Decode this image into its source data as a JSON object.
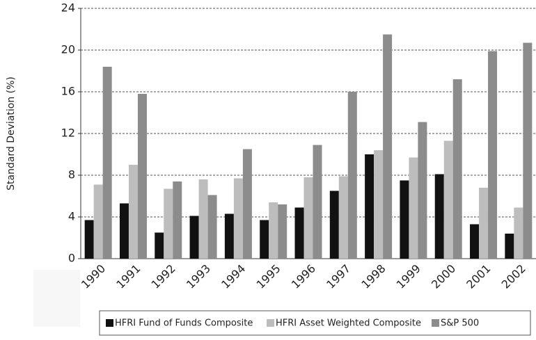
{
  "chart_data": {
    "type": "bar",
    "y_label": "Standard Deviation (%)",
    "categories": [
      "1990",
      "1991",
      "1992",
      "1993",
      "1994",
      "1995",
      "1996",
      "1997",
      "1998",
      "1999",
      "2000",
      "2001",
      "2002"
    ],
    "series": [
      {
        "name": "HFRI Fund of Funds Composite",
        "color": "#111111",
        "values": [
          3.7,
          5.3,
          2.5,
          4.1,
          4.3,
          3.7,
          4.9,
          6.5,
          10.0,
          7.5,
          8.1,
          3.3,
          2.4
        ]
      },
      {
        "name": "HFRI Asset Weighted Composite",
        "color": "#bdbdbd",
        "values": [
          7.1,
          9.0,
          6.7,
          7.6,
          7.7,
          5.4,
          7.8,
          7.9,
          10.4,
          9.7,
          11.3,
          6.8,
          4.9
        ]
      },
      {
        "name": "S&P 500",
        "color": "#8c8c8c",
        "values": [
          18.4,
          15.8,
          7.4,
          6.1,
          10.5,
          5.2,
          10.9,
          16.0,
          21.5,
          13.1,
          17.2,
          19.9,
          20.7
        ]
      }
    ],
    "ylim": [
      0,
      24
    ],
    "yticks": [
      0,
      4,
      8,
      12,
      16,
      20,
      24
    ],
    "grid": true
  }
}
